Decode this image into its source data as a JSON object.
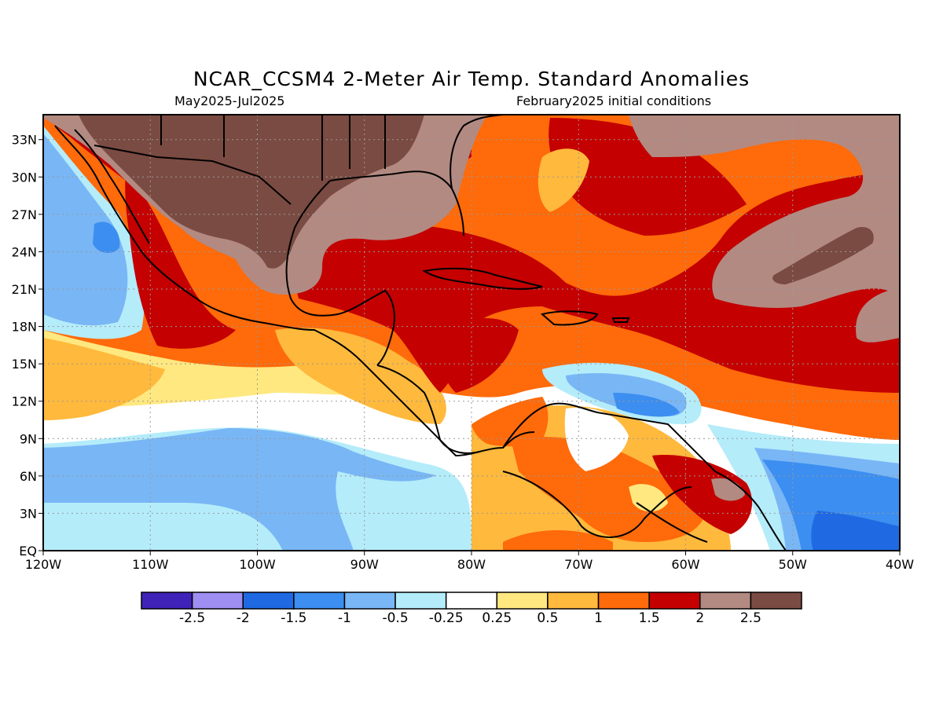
{
  "title": "NCAR_CCSM4 2-Meter Air Temp. Standard Anomalies",
  "subtitle_left": "May2025-Jul2025",
  "subtitle_right": "February2025 initial conditions",
  "axes": {
    "lat_ticks": [
      "33N",
      "30N",
      "27N",
      "24N",
      "21N",
      "18N",
      "15N",
      "12N",
      "9N",
      "6N",
      "3N",
      "EQ"
    ],
    "lat_values": [
      33,
      30,
      27,
      24,
      21,
      18,
      15,
      12,
      9,
      6,
      3,
      0
    ],
    "lon_ticks": [
      "120W",
      "110W",
      "100W",
      "90W",
      "80W",
      "70W",
      "60W",
      "50W",
      "40W"
    ],
    "lon_values": [
      -120,
      -110,
      -100,
      -90,
      -80,
      -70,
      -60,
      -50,
      -40
    ],
    "lon_range": [
      -120,
      -40
    ],
    "lat_range": [
      0,
      35
    ],
    "grid": "dotted"
  },
  "colorbar": {
    "labels": [
      "-2.5",
      "-2",
      "-1.5",
      "-1",
      "-0.5",
      "-0.25",
      "0.25",
      "0.5",
      "1",
      "1.5",
      "2",
      "2.5"
    ],
    "colors": [
      "#3f23b8",
      "#9e8ef2",
      "#1f6ae3",
      "#3c8ef0",
      "#79b6f5",
      "#b4ecfa",
      "#ffffff",
      "#ffe880",
      "#ffb93c",
      "#ff6a0a",
      "#c40000",
      "#b28a82",
      "#7a4b42"
    ]
  },
  "map_colors": {
    "deep_brown": "#7a4b42",
    "light_brown": "#b28a82",
    "dark_red": "#c40000",
    "orange": "#ff6a0a",
    "light_orange": "#ffb93c",
    "yellow": "#ffe880",
    "white": "#ffffff",
    "pale_cyan": "#b4ecfa",
    "light_blue": "#79b6f5",
    "blue": "#3c8ef0",
    "dark_blue": "#1f6ae3"
  }
}
